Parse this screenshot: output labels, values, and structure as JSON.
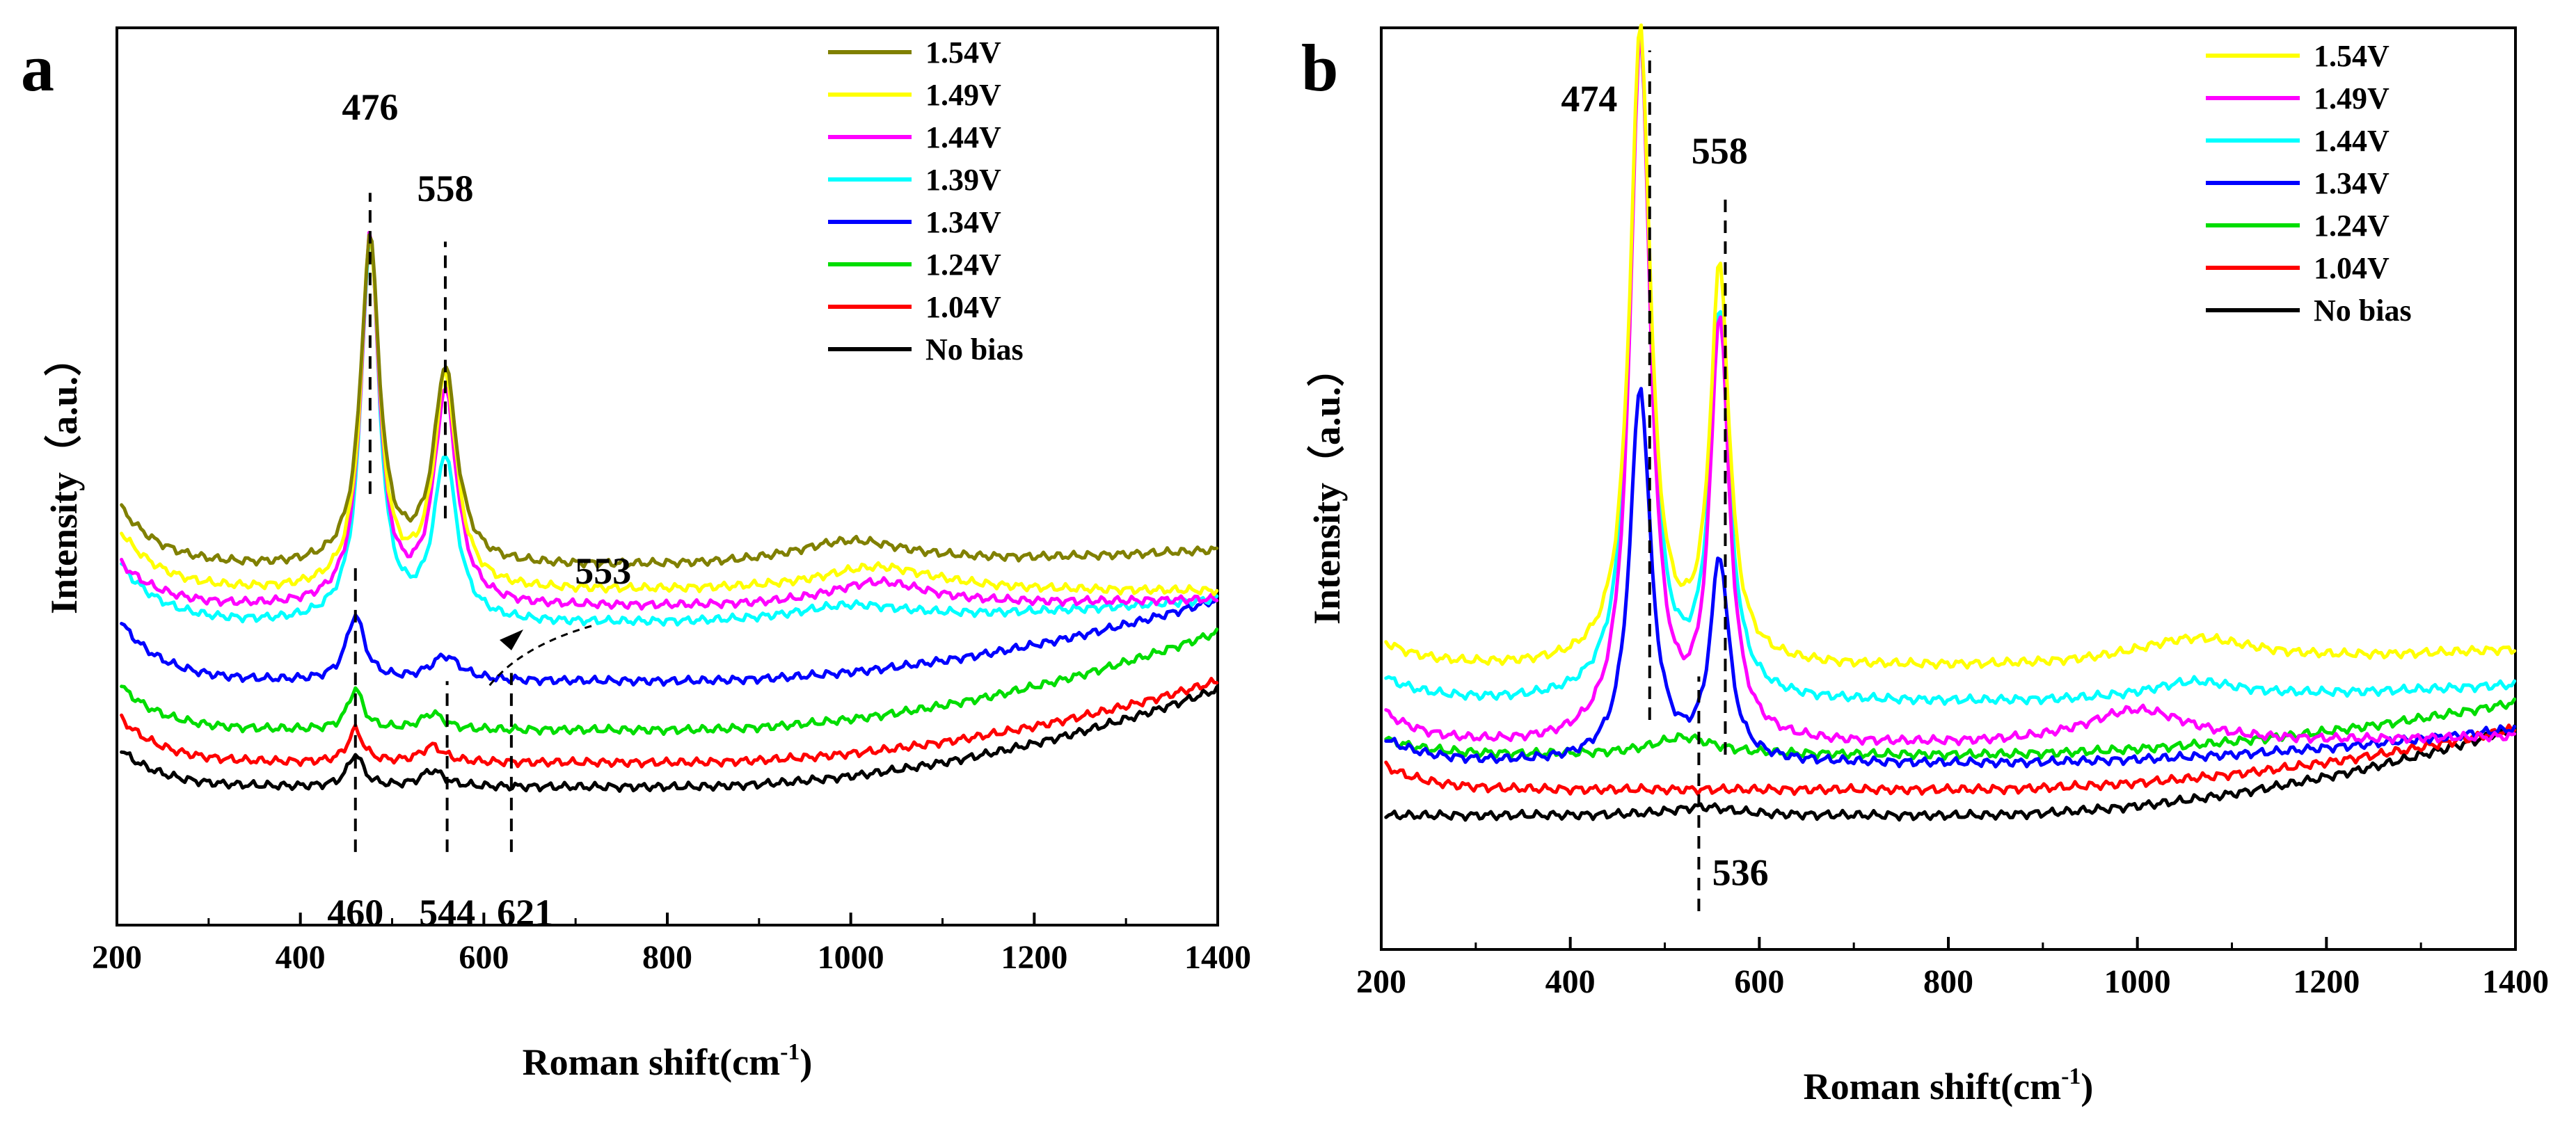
{
  "chart_data": [
    {
      "panel": "a",
      "type": "line",
      "xlabel": "Roman shift(cm",
      "xlabel_sup": "-1",
      "xlabel_close": ")",
      "ylabel": "Intensity（a.u.）",
      "xlim": [
        200,
        1400
      ],
      "ylim": [
        0,
        100
      ],
      "xticks": [
        "200",
        "400",
        "600",
        "800",
        "1000",
        "1200",
        "1400"
      ],
      "series": [
        {
          "name": "1.54V",
          "color": "#808000",
          "baseline": 38,
          "peaks": [
            [
              476,
              40,
              12
            ],
            [
              558,
              24,
              15
            ],
            [
              1000,
              3,
              80
            ]
          ],
          "start": 8,
          "tail": 3,
          "end": 40
        },
        {
          "name": "1.49V",
          "color": "#ffff00",
          "baseline": 35,
          "peaks": [
            [
              476,
              43,
              12
            ],
            [
              558,
              26,
              15
            ],
            [
              1030,
              3,
              80
            ]
          ],
          "start": 8,
          "tail": 2,
          "end": 35
        },
        {
          "name": "1.44V",
          "color": "#ff00ff",
          "baseline": 33,
          "peaks": [
            [
              476,
              45,
              12
            ],
            [
              558,
              26,
              15
            ],
            [
              1030,
              3,
              70
            ]
          ],
          "start": 6,
          "tail": 0,
          "end": 34
        },
        {
          "name": "1.39V",
          "color": "#00ffff",
          "baseline": 31,
          "peaks": [
            [
              476,
              47,
              12
            ],
            [
              558,
              20,
              15
            ],
            [
              1000,
              2,
              80
            ]
          ],
          "start": 8,
          "tail": -2,
          "end": 34
        },
        {
          "name": "1.34V",
          "color": "#0000ff",
          "baseline": 24,
          "peaks": [
            [
              460,
              8,
              12
            ],
            [
              558,
              3,
              20
            ]
          ],
          "start": 8,
          "tail": -1,
          "end": 34
        },
        {
          "name": "1.24V",
          "color": "#00dd00",
          "baseline": 18,
          "peaks": [
            [
              460,
              5,
              10
            ],
            [
              544,
              2,
              15
            ]
          ],
          "start": 6,
          "tail": 0,
          "end": 30
        },
        {
          "name": "1.04V",
          "color": "#ff0000",
          "baseline": 14,
          "peaks": [
            [
              460,
              4,
              10
            ],
            [
              544,
              2,
              15
            ]
          ],
          "start": 6,
          "tail": 0,
          "end": 24
        },
        {
          "name": "No bias",
          "color": "#000000",
          "baseline": 11,
          "peaks": [
            [
              460,
              4,
              10
            ],
            [
              544,
              2,
              15
            ]
          ],
          "start": 5,
          "tail": 0,
          "end": 23
        }
      ],
      "annotations": [
        {
          "text": "476",
          "x": 476,
          "y": 93
        },
        {
          "text": "558",
          "x": 558,
          "y": 83
        },
        {
          "text": "553",
          "x": 730,
          "y": 36
        },
        {
          "text": "460",
          "x": 460,
          "y": -6
        },
        {
          "text": "544",
          "x": 560,
          "y": -6
        },
        {
          "text": "621",
          "x": 645,
          "y": -6
        }
      ],
      "guides": [
        {
          "x": 476,
          "y1": 47,
          "y2": 84
        },
        {
          "x": 558,
          "y1": 44,
          "y2": 78
        },
        {
          "x": 460,
          "y1": 3,
          "y2": 38
        },
        {
          "x": 560,
          "y1": 3,
          "y2": 24
        },
        {
          "x": 630,
          "y1": 3,
          "y2": 25
        }
      ]
    },
    {
      "panel": "b",
      "type": "line",
      "xlabel": "Roman shift(cm",
      "xlabel_sup": "-1",
      "xlabel_close": ")",
      "ylabel": "Intensity（a.u.）",
      "xlim": [
        200,
        1400
      ],
      "ylim": [
        0,
        100
      ],
      "xticks": [
        "200",
        "400",
        "600",
        "800",
        "1000",
        "1200",
        "1400"
      ],
      "series": [
        {
          "name": "1.54V",
          "color": "#ffff00",
          "baseline": 28,
          "peaks": [
            [
              474,
              73,
              13
            ],
            [
              558,
              45,
              12
            ],
            [
              1060,
              3,
              80
            ]
          ],
          "start": 3,
          "tail": 0,
          "end": 30
        },
        {
          "name": "1.49V",
          "color": "#ff00ff",
          "baseline": 19,
          "peaks": [
            [
              474,
              81,
              13
            ],
            [
              558,
              48,
              12
            ],
            [
              1000,
              4,
              70
            ]
          ],
          "start": 4,
          "tail": 0,
          "end": 20
        },
        {
          "name": "1.44V",
          "color": "#00ffff",
          "baseline": 24,
          "peaks": [
            [
              474,
              76,
              13
            ],
            [
              558,
              44,
              12
            ],
            [
              1060,
              2,
              60
            ]
          ],
          "start": 3,
          "tail": 0,
          "end": 26
        },
        {
          "name": "1.34V",
          "color": "#0000ff",
          "baseline": 17,
          "peaks": [
            [
              474,
              43,
              13
            ],
            [
              558,
              23,
              12
            ]
          ],
          "start": 3,
          "tail": 0,
          "end": 21
        },
        {
          "name": "1.24V",
          "color": "#00dd00",
          "baseline": 18,
          "peaks": [
            [
              520,
              2,
              40
            ]
          ],
          "start": 2,
          "tail": 0,
          "end": 24
        },
        {
          "name": "1.04V",
          "color": "#ff0000",
          "baseline": 14,
          "peaks": [],
          "start": 3,
          "tail": 0,
          "end": 21
        },
        {
          "name": "No bias",
          "color": "#000000",
          "baseline": 11,
          "peaks": [
            [
              540,
              1,
              40
            ]
          ],
          "start": 0,
          "tail": 0,
          "end": 21
        }
      ],
      "annotations": [
        {
          "text": "474",
          "x": 420,
          "y": 92
        },
        {
          "text": "558",
          "x": 558,
          "y": 86
        },
        {
          "text": "536",
          "x": 580,
          "y": 3
        }
      ],
      "guides": [
        {
          "x": 484,
          "y1": 22,
          "y2": 99
        },
        {
          "x": 564,
          "y1": 18,
          "y2": 82
        },
        {
          "x": 536,
          "y1": 0,
          "y2": 27
        }
      ]
    }
  ]
}
